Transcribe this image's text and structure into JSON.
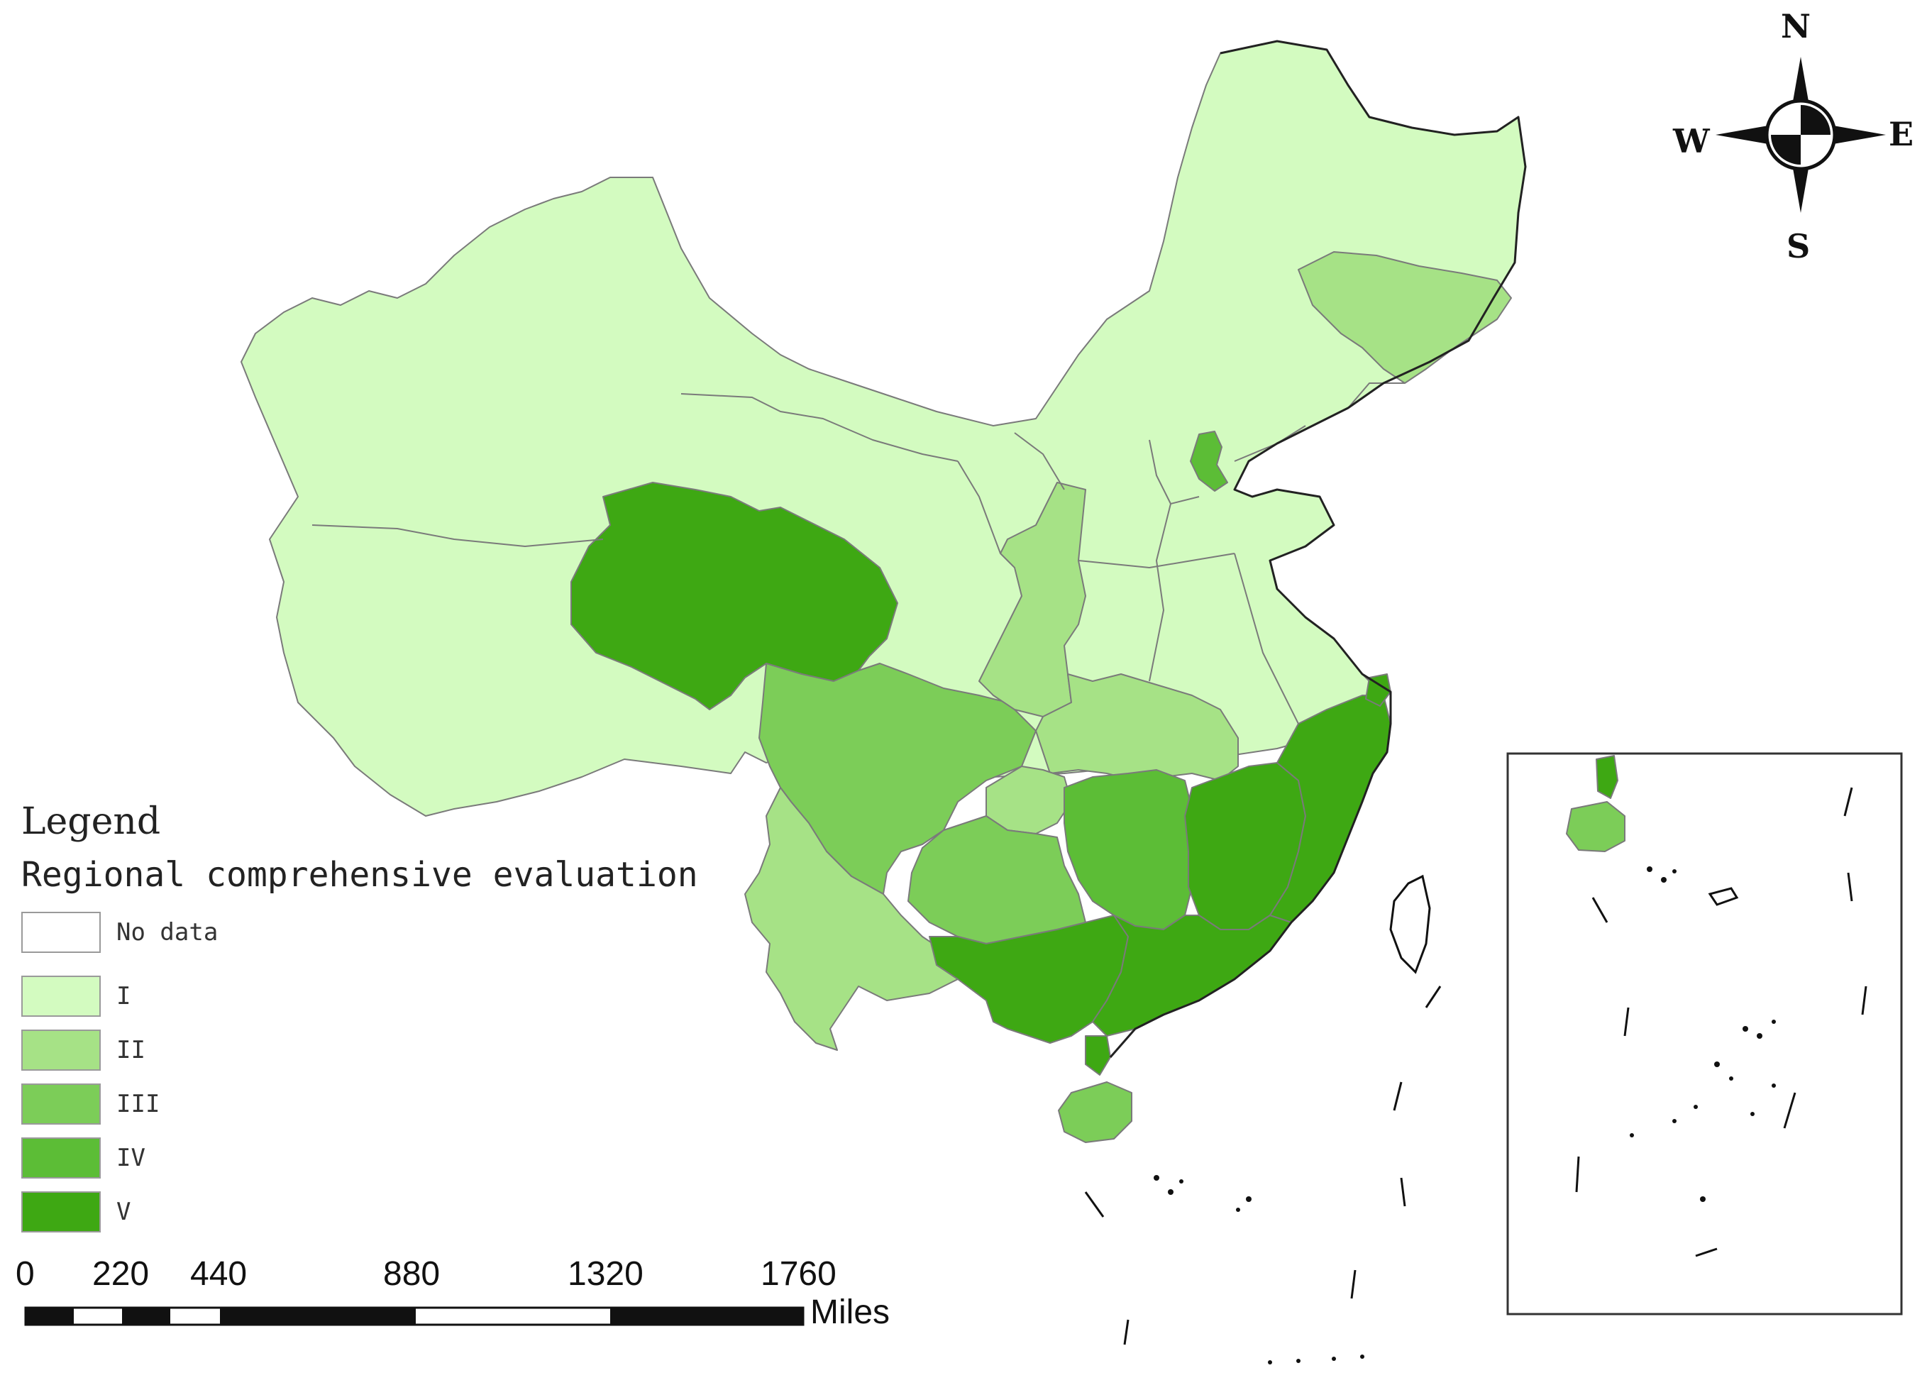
{
  "legend": {
    "title": "Legend",
    "subtitle": "Regional comprehensive evaluation",
    "classes": [
      {
        "label": "No data",
        "color": "#ffffff"
      },
      {
        "label": "I",
        "color": "#d3fbc0"
      },
      {
        "label": "II",
        "color": "#a6e286"
      },
      {
        "label": "III",
        "color": "#7ccd58"
      },
      {
        "label": "IV",
        "color": "#5cbd36"
      },
      {
        "label": "V",
        "color": "#3ea813"
      }
    ]
  },
  "scale_bar": {
    "ticks": [
      "0",
      "220",
      "440",
      "880",
      "1320",
      "1760"
    ],
    "units": "Miles"
  },
  "compass": {
    "north": "N",
    "south": "S",
    "east": "E",
    "west": "W"
  },
  "regions": [
    {
      "name": "Xinjiang",
      "class": "I"
    },
    {
      "name": "Tibet",
      "class": "I"
    },
    {
      "name": "Qinghai",
      "class": "V"
    },
    {
      "name": "Gansu",
      "class": "I"
    },
    {
      "name": "Inner Mongolia",
      "class": "I"
    },
    {
      "name": "Heilongjiang",
      "class": "I"
    },
    {
      "name": "Jilin",
      "class": "II"
    },
    {
      "name": "Liaoning",
      "class": "I"
    },
    {
      "name": "Beijing",
      "class": "IV"
    },
    {
      "name": "Shaanxi",
      "class": "II"
    },
    {
      "name": "Henan",
      "class": "II"
    },
    {
      "name": "Sichuan",
      "class": "III"
    },
    {
      "name": "Yunnan",
      "class": "II"
    },
    {
      "name": "Guizhou",
      "class": "III"
    },
    {
      "name": "Hunan",
      "class": "IV"
    },
    {
      "name": "Chongqing",
      "class": "II"
    },
    {
      "name": "Hubei",
      "class": "II"
    },
    {
      "name": "Guangxi",
      "class": "V"
    },
    {
      "name": "Guangdong",
      "class": "V"
    },
    {
      "name": "Fujian",
      "class": "V"
    },
    {
      "name": "Jiangxi",
      "class": "V"
    },
    {
      "name": "Zhejiang",
      "class": "V"
    },
    {
      "name": "Shanghai",
      "class": "V"
    },
    {
      "name": "Hainan",
      "class": "III"
    },
    {
      "name": "Shandong",
      "class": "I"
    },
    {
      "name": "Jiangsu",
      "class": "I"
    },
    {
      "name": "Anhui",
      "class": "I"
    },
    {
      "name": "Hebei",
      "class": "I"
    },
    {
      "name": "Shanxi",
      "class": "I"
    },
    {
      "name": "Ningxia",
      "class": "I"
    }
  ]
}
